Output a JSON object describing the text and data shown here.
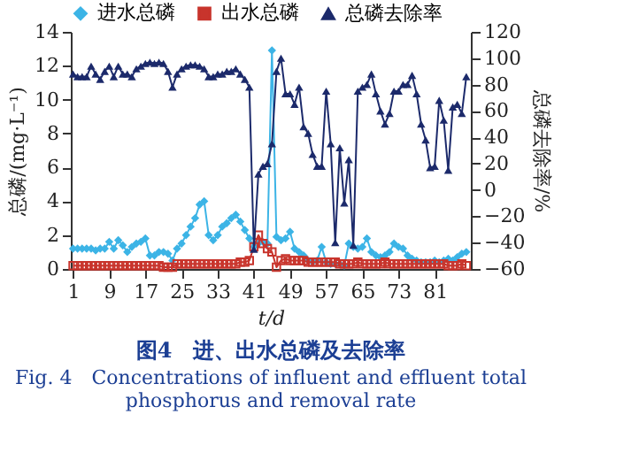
{
  "chart_data": {
    "type": "line",
    "title": "图4　进、出水总磷及去除率",
    "subtitle": "Fig. 4　Concentrations of influent and effluent total phosphorus and removal rate",
    "xlabel": "t/d",
    "ylabel": "总磷/(mg·L⁻¹)",
    "y2label": "总磷去除率/%",
    "x": [
      1,
      2,
      3,
      4,
      5,
      6,
      7,
      8,
      9,
      10,
      11,
      12,
      13,
      14,
      15,
      16,
      17,
      18,
      19,
      20,
      21,
      22,
      23,
      24,
      25,
      26,
      27,
      28,
      29,
      30,
      31,
      32,
      33,
      34,
      35,
      36,
      37,
      38,
      39,
      40,
      41,
      42,
      43,
      44,
      45,
      46,
      47,
      48,
      49,
      50,
      51,
      52,
      53,
      54,
      55,
      56,
      57,
      58,
      59,
      60,
      61,
      62,
      63,
      64,
      65,
      66,
      67,
      68,
      69,
      70,
      71,
      72,
      73,
      74,
      75,
      76,
      77,
      78,
      79,
      80,
      81,
      82,
      83,
      84,
      85,
      86,
      87,
      88
    ],
    "series": [
      {
        "name": "进水总磷",
        "color": "#3cb4e6",
        "marker": "diamond",
        "values": [
          1.2,
          1.2,
          1.2,
          1.2,
          1.2,
          1.1,
          1.2,
          1.2,
          1.6,
          1.2,
          1.7,
          1.4,
          1.0,
          1.3,
          1.5,
          1.6,
          1.8,
          0.8,
          0.8,
          1.0,
          1.0,
          0.9,
          0.5,
          1.2,
          1.5,
          2.0,
          2.5,
          3.0,
          3.8,
          4.0,
          2.0,
          1.7,
          2.0,
          2.5,
          2.7,
          3.0,
          3.2,
          2.8,
          2.3,
          1.8,
          1.3,
          1.5,
          1.6,
          1.5,
          12.9,
          1.9,
          1.7,
          1.8,
          2.2,
          1.2,
          1.0,
          0.8,
          0.5,
          0.4,
          0.5,
          1.3,
          0.4,
          0.3,
          0.3,
          0.3,
          0.2,
          1.5,
          1.3,
          1.2,
          1.3,
          1.8,
          1.0,
          0.8,
          0.7,
          0.8,
          1.0,
          1.5,
          1.3,
          1.2,
          0.8,
          0.6,
          0.5,
          0.4,
          0.4,
          0.4,
          0.5,
          0.4,
          0.5,
          0.6,
          0.5,
          0.7,
          0.9,
          1.0
        ]
      },
      {
        "name": "出水总磷",
        "color": "#c8342c",
        "marker": "square",
        "values": [
          0.2,
          0.2,
          0.2,
          0.2,
          0.2,
          0.2,
          0.2,
          0.2,
          0.2,
          0.2,
          0.2,
          0.2,
          0.2,
          0.2,
          0.2,
          0.2,
          0.2,
          0.2,
          0.2,
          0.2,
          0.1,
          0.1,
          0.1,
          0.3,
          0.3,
          0.3,
          0.3,
          0.3,
          0.3,
          0.3,
          0.3,
          0.3,
          0.3,
          0.3,
          0.3,
          0.3,
          0.3,
          0.4,
          0.4,
          0.5,
          1.3,
          2.0,
          1.5,
          1.2,
          1.0,
          0.1,
          0.5,
          0.6,
          0.5,
          0.5,
          0.5,
          0.5,
          0.4,
          0.4,
          0.4,
          0.4,
          0.4,
          0.4,
          0.4,
          0.3,
          0.3,
          0.3,
          0.3,
          0.4,
          0.3,
          0.3,
          0.3,
          0.3,
          0.3,
          0.4,
          0.3,
          0.3,
          0.3,
          0.3,
          0.3,
          0.3,
          0.3,
          0.3,
          0.3,
          0.3,
          0.3,
          0.3,
          0.3,
          0.2,
          0.2,
          0.2,
          0.3,
          0.2
        ]
      },
      {
        "name": "总磷去除率",
        "color": "#1c2a6b",
        "marker": "triangle",
        "axis": "y2",
        "values": [
          88,
          86,
          86,
          86,
          94,
          88,
          84,
          90,
          94,
          86,
          94,
          88,
          88,
          86,
          92,
          94,
          96,
          97,
          96,
          97,
          96,
          90,
          78,
          88,
          92,
          94,
          95,
          95,
          94,
          92,
          86,
          86,
          88,
          88,
          90,
          90,
          92,
          88,
          84,
          78,
          -45,
          12,
          18,
          20,
          35,
          90,
          100,
          73,
          73,
          65,
          78,
          48,
          43,
          27,
          18,
          18,
          75,
          35,
          -40,
          32,
          -10,
          23,
          -42,
          75,
          78,
          80,
          88,
          73,
          60,
          50,
          58,
          75,
          75,
          80,
          80,
          87,
          73,
          50,
          38,
          17,
          18,
          68,
          53,
          15,
          63,
          65,
          58,
          86
        ]
      }
    ],
    "xlim": [
      0.5,
      89
    ],
    "xticks": [
      1,
      9,
      17,
      25,
      33,
      41,
      49,
      57,
      65,
      73,
      81
    ],
    "ylim": [
      0,
      14
    ],
    "yticks": [
      0,
      2,
      4,
      6,
      8,
      10,
      12,
      14
    ],
    "y2lim": [
      -60,
      120
    ],
    "y2ticks": [
      -60,
      -40,
      -20,
      0,
      20,
      40,
      60,
      80,
      100,
      120
    ],
    "legend": "top",
    "grid": false
  }
}
